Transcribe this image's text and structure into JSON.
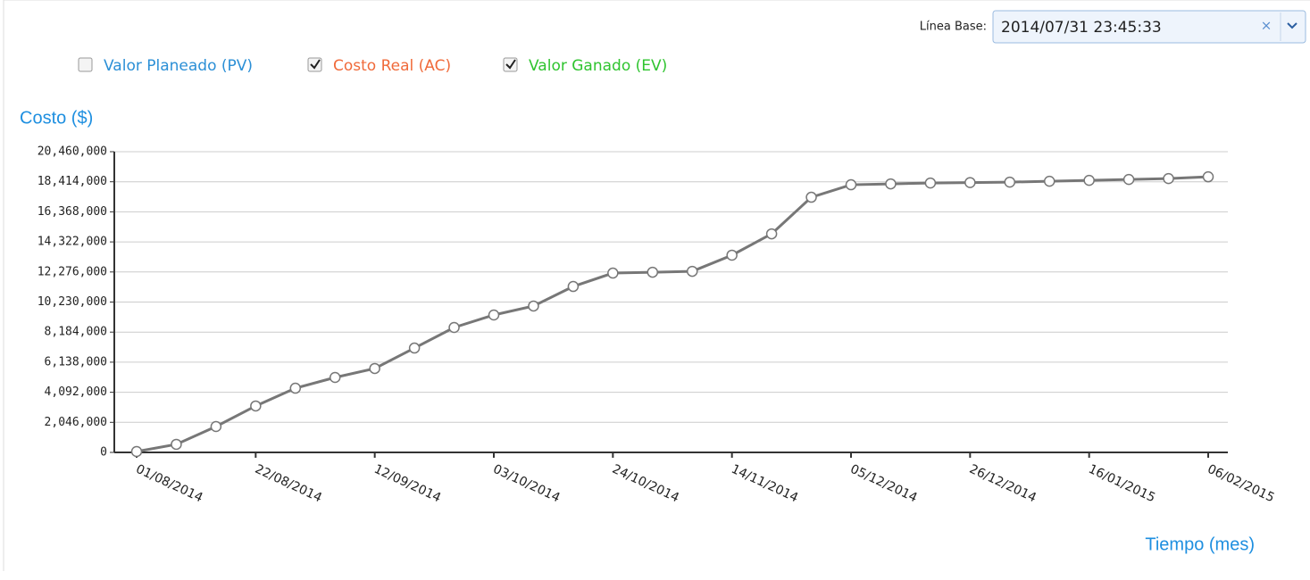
{
  "baseline": {
    "label": "Línea Base:",
    "value": "2014/07/31 23:45:33"
  },
  "chart_data": {
    "type": "line",
    "legend": [
      {
        "label": "Valor Planeado (PV)",
        "checked": false,
        "color": "#2b8fd6"
      },
      {
        "label": "Costo Real (AC)",
        "checked": true,
        "color": "#f06a3a"
      },
      {
        "label": "Valor Ganado (EV)",
        "checked": true,
        "color": "#2fc42f"
      }
    ],
    "y_label": "Costo ($)",
    "x_label": "Tiempo (mes)",
    "categories": [
      "01/08/2014",
      null,
      null,
      "22/08/2014",
      null,
      null,
      "12/09/2014",
      null,
      null,
      "03/10/2014",
      null,
      null,
      "24/10/2014",
      null,
      null,
      "14/11/2014",
      null,
      null,
      "05/12/2014",
      null,
      null,
      "26/12/2014",
      null,
      null,
      "16/01/2015",
      null,
      null,
      "06/02/2015"
    ],
    "values": [
      60000,
      550000,
      1760000,
      3160000,
      4370000,
      5100000,
      5710000,
      7100000,
      8500000,
      9350000,
      9960000,
      11290000,
      12200000,
      12260000,
      12320000,
      13420000,
      14870000,
      17360000,
      18210000,
      18270000,
      18330000,
      18360000,
      18390000,
      18450000,
      18510000,
      18570000,
      18630000,
      18750000
    ],
    "color": "#777777",
    "ylim": [
      0,
      20460000
    ],
    "yticks": [
      0,
      {
        "value": 2046000,
        "label": "2,046,000"
      },
      {
        "value": 4092000,
        "label": "4,092,000"
      },
      {
        "value": 6138000,
        "label": "6,138,000"
      },
      {
        "value": 8184000,
        "label": "8,184,000"
      },
      {
        "value": 10230000,
        "label": "10,230,000"
      },
      {
        "value": 12276000,
        "label": "12,276,000"
      },
      {
        "value": 14322000,
        "label": "14,322,000"
      },
      {
        "value": 16368000,
        "label": "16,368,000"
      },
      {
        "value": 18414000,
        "label": "18,414,000"
      },
      {
        "value": 20460000,
        "label": "20,460,000"
      }
    ],
    "grid": true
  }
}
